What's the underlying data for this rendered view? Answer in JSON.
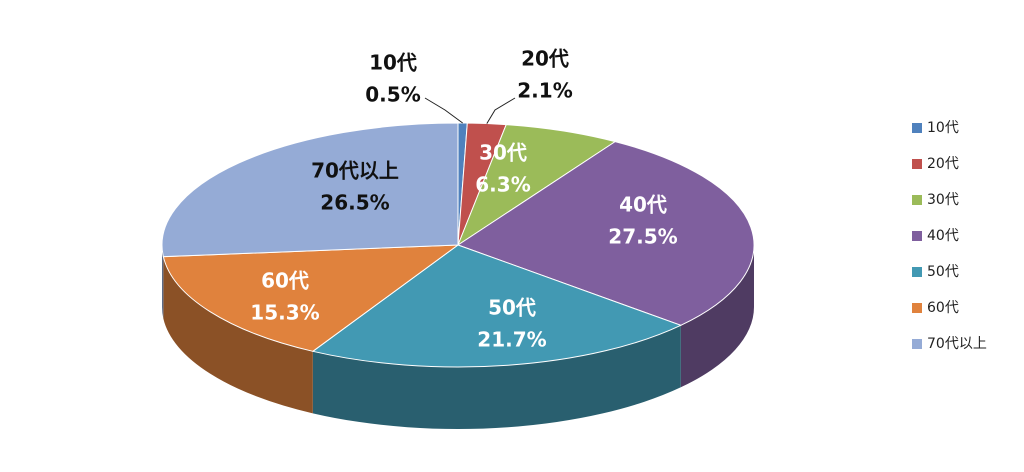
{
  "chart_data": {
    "type": "pie3d",
    "categories": [
      "10代",
      "20代",
      "30代",
      "40代",
      "50代",
      "60代",
      "70代以上"
    ],
    "values": [
      0.5,
      2.1,
      6.3,
      27.5,
      21.7,
      15.3,
      26.5
    ],
    "value_labels": [
      "0.5%",
      "2.1%",
      "6.3%",
      "27.5%",
      "21.7%",
      "15.3%",
      "26.5%"
    ],
    "colors": [
      "#4f81bd",
      "#c0504d",
      "#9bbb59",
      "#7f5f9e",
      "#4299b3",
      "#e0823d",
      "#95abd6"
    ],
    "legend": "right"
  }
}
